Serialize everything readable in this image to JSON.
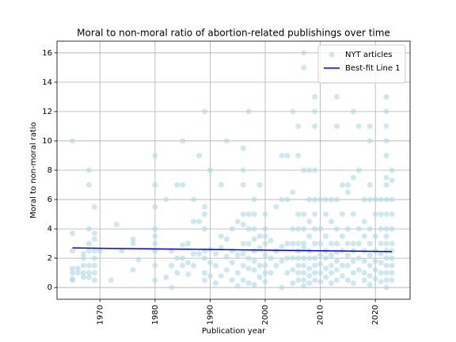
{
  "chart_data": {
    "type": "scatter",
    "title": "Moral to non-moral ratio of abortion-related publishings over time",
    "x_label": "Publication year",
    "y_label": "Moral to non-moral ratio",
    "xlim": [
      1962.2,
      2026.3
    ],
    "ylim": [
      -0.8,
      16.8
    ],
    "xticks": [
      1970,
      1980,
      1990,
      2000,
      2010,
      2020
    ],
    "yticks": [
      0,
      2,
      4,
      6,
      8,
      10,
      12,
      14,
      16
    ],
    "grid": true,
    "legend": "upper right",
    "series": [
      {
        "name": "NYT articles",
        "type": "scatter",
        "color": "#add8e6",
        "x": [
          1965,
          1965,
          1965,
          1965,
          1965,
          1965,
          1965,
          1966,
          1966,
          1967,
          1967,
          1967,
          1967,
          1967,
          1968,
          1968,
          1968,
          1968,
          1968,
          1968,
          1968,
          1968,
          1969,
          1969,
          1969,
          1969,
          1969,
          1969,
          1969,
          1969,
          1970,
          1972,
          1973,
          1974,
          1976,
          1976,
          1976,
          1977,
          1980,
          1980,
          1980,
          1980,
          1980,
          1980,
          1980,
          1980,
          1980,
          1982,
          1982,
          1983,
          1983,
          1983,
          1984,
          1984,
          1984,
          1985,
          1985,
          1985,
          1985,
          1985,
          1986,
          1986,
          1986,
          1987,
          1987,
          1987,
          1987,
          1988,
          1988,
          1988,
          1989,
          1989,
          1989,
          1989,
          1989,
          1989,
          1989,
          1989,
          1990,
          1990,
          1990,
          1990,
          1991,
          1991,
          1991,
          1992,
          1992,
          1992,
          1992,
          1993,
          1993,
          1993,
          1993,
          1994,
          1994,
          1994,
          1994,
          1995,
          1995,
          1995,
          1995,
          1996,
          1996,
          1996,
          1996,
          1996,
          1996,
          1996,
          1996,
          1996,
          1997,
          1997,
          1997,
          1997,
          1997,
          1997,
          1997,
          1998,
          1998,
          1998,
          1998,
          1998,
          1998,
          1998,
          1998,
          1999,
          1999,
          1999,
          1999,
          1999,
          2000,
          2000,
          2000,
          2000,
          2000,
          2000,
          2000,
          2000,
          2001,
          2001,
          2001,
          2002,
          2002,
          2002,
          2003,
          2003,
          2003,
          2003,
          2003,
          2004,
          2004,
          2004,
          2004,
          2004,
          2005,
          2005,
          2005,
          2005,
          2005,
          2005,
          2005,
          2006,
          2006,
          2006,
          2006,
          2006,
          2006,
          2006,
          2006,
          2006,
          2006,
          2007,
          2007,
          2007,
          2007,
          2007,
          2007,
          2007,
          2007,
          2007,
          2007,
          2007,
          2007,
          2008,
          2008,
          2008,
          2008,
          2008,
          2008,
          2008,
          2008,
          2008,
          2009,
          2009,
          2009,
          2009,
          2009,
          2009,
          2009,
          2009,
          2009,
          2009,
          2009,
          2009,
          2010,
          2010,
          2010,
          2010,
          2010,
          2010,
          2010,
          2011,
          2011,
          2011,
          2011,
          2011,
          2011,
          2011,
          2012,
          2012,
          2012,
          2012,
          2012,
          2012,
          2012,
          2013,
          2013,
          2013,
          2013,
          2013,
          2013,
          2013,
          2013,
          2013,
          2014,
          2014,
          2014,
          2014,
          2014,
          2014,
          2015,
          2015,
          2015,
          2015,
          2015,
          2015,
          2015,
          2016,
          2016,
          2016,
          2016,
          2016,
          2016,
          2016,
          2016,
          2017,
          2017,
          2017,
          2017,
          2017,
          2017,
          2018,
          2018,
          2018,
          2018,
          2018,
          2018,
          2018,
          2019,
          2019,
          2019,
          2019,
          2019,
          2019,
          2019,
          2019,
          2019,
          2019,
          2020,
          2020,
          2020,
          2020,
          2020,
          2020,
          2020,
          2021,
          2021,
          2021,
          2021,
          2021,
          2021,
          2021,
          2021,
          2022,
          2022,
          2022,
          2022,
          2022,
          2022,
          2022,
          2022,
          2022,
          2022,
          2022,
          2022,
          2022,
          2022,
          2022,
          2022,
          2022,
          2022,
          2023,
          2023,
          2023,
          2023,
          2023,
          2023,
          2023,
          2023,
          2023,
          2023,
          2023
        ],
        "values": [
          10,
          3.7,
          2.5,
          1.3,
          1.0,
          0.6,
          0.5,
          1.3,
          1.0,
          2.3,
          2.0,
          1.5,
          1.0,
          0.7,
          8,
          7,
          4,
          3,
          2.5,
          1.5,
          1.0,
          0.7,
          5.5,
          3.7,
          3.3,
          2.5,
          2,
          1.5,
          1,
          0.5,
          2.5,
          0.5,
          4.3,
          2.5,
          3.3,
          3,
          1.2,
          1.9,
          9,
          7,
          5.5,
          4,
          3.5,
          3,
          2.5,
          1.5,
          0.5,
          6,
          0.7,
          2.5,
          1.5,
          0,
          7,
          1,
          2,
          10,
          7,
          2.9,
          2,
          1.5,
          3,
          1.7,
          0.9,
          4.5,
          6,
          2.3,
          1.5,
          9,
          4.5,
          2.3,
          12,
          5.5,
          5,
          4,
          2.5,
          2,
          1,
          0.5,
          8,
          2.6,
          1.7,
          0.8,
          2.3,
          1.5,
          0.3,
          7,
          3.5,
          2.7,
          0.8,
          10,
          3.3,
          2.1,
          1.2,
          4,
          2.5,
          1.7,
          0.5,
          4.5,
          2.2,
          1,
          0.1,
          9.5,
          8,
          7,
          5,
          4.3,
          3,
          2.3,
          1.5,
          0.5,
          12,
          5,
          4,
          3,
          2,
          1.3,
          0.3,
          6,
          5,
          4,
          3.3,
          2.5,
          1.8,
          1.2,
          0.2,
          7,
          3.5,
          2.7,
          1.5,
          0.7,
          5,
          4,
          3.5,
          3,
          2.2,
          1.5,
          1,
          0.4,
          3.2,
          2,
          1,
          5.5,
          2.5,
          1.5,
          9,
          6,
          2.8,
          1.8,
          0,
          9,
          6,
          3,
          2,
          1,
          12,
          6.5,
          4,
          3,
          2,
          1.2,
          0.3,
          11,
          9,
          5,
          4,
          3,
          2.5,
          2,
          1.5,
          1,
          0.5,
          16,
          15,
          8,
          5,
          4,
          3,
          2.7,
          2,
          1.5,
          1,
          0.5,
          0.1,
          8,
          6,
          4.5,
          3.5,
          2.5,
          2,
          1.3,
          0.8,
          0.3,
          13,
          12,
          11,
          8,
          6,
          5,
          4,
          3,
          2,
          1.5,
          1,
          0.5,
          6,
          4,
          3,
          2.2,
          1.6,
          1,
          0.4,
          6,
          5,
          3.5,
          2.5,
          2,
          1.3,
          0.7,
          6,
          4.5,
          3,
          2.2,
          1.5,
          1,
          0.3,
          13,
          11,
          6,
          4,
          3,
          2.4,
          1.8,
          1.2,
          0.5,
          7,
          5,
          3.5,
          2.5,
          1.5,
          0.8,
          7,
          6.5,
          4,
          3,
          2.2,
          1.5,
          0.5,
          12,
          7.5,
          5,
          3,
          2.5,
          1.8,
          1,
          0.3,
          11,
          8,
          4,
          3,
          2,
          1.2,
          6,
          4.5,
          3.5,
          2.5,
          1.8,
          1,
          0.5,
          11,
          10,
          7,
          6,
          4,
          3,
          2.2,
          1.5,
          0.8,
          0.2,
          6,
          5,
          3.5,
          2.5,
          1.8,
          1.2,
          0.6,
          6,
          5,
          4,
          3,
          2.3,
          1.7,
          1,
          0.4,
          13,
          12,
          11,
          10,
          9,
          7.5,
          7,
          6,
          5,
          4,
          3.5,
          3,
          2.5,
          2,
          1.5,
          1,
          0.5,
          0,
          8,
          7.3,
          6,
          5,
          4,
          3,
          2.5,
          2,
          1.5,
          1,
          0.5
        ]
      },
      {
        "name": "Best-fit Line 1",
        "type": "line",
        "color": "#0000ff",
        "x": [
          1965,
          2023
        ],
        "values": [
          2.7,
          2.45
        ]
      }
    ]
  }
}
